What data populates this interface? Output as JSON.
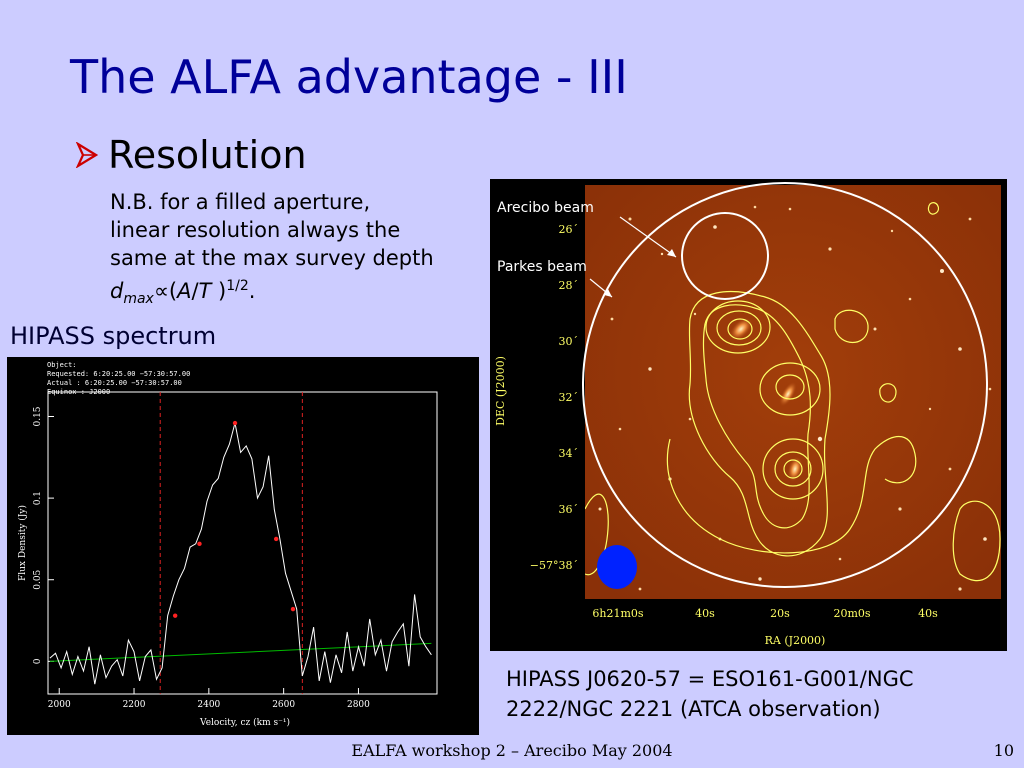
{
  "slide": {
    "title": "The ALFA advantage - III",
    "bullet": "Resolution",
    "note": {
      "line1": "N.B. for a filled aperture,",
      "line2": "linear resolution always the",
      "line3": "same at the max survey depth",
      "d": "d",
      "max": "max",
      "propto": "∝",
      "paren_open": "(",
      "A": "A",
      "slash": "/",
      "T": "T",
      "paren_close": " )",
      "exp": "1/2",
      "period": "."
    },
    "hipass_label": "HIPASS spectrum",
    "caption_line1": "HIPASS J0620-57 = ESO161-G001/NGC",
    "caption_line2": "2222/NGC 2221 (ATCA observation)",
    "footer": "EALFA workshop 2 – Arecibo May 2004",
    "page_number": "10",
    "title_color": "#000099",
    "background_color": "#ccccff"
  },
  "radio_image": {
    "annotations": {
      "arecibo": "Arecibo beam",
      "parkes": "Parkes beam"
    },
    "dec_ticks": [
      "26´",
      "28´",
      "30´",
      "32´",
      "34´",
      "36´",
      "−57°38´"
    ],
    "ra_ticks": [
      "6h21m0s",
      "40s",
      "20s",
      "20m0s",
      "40s"
    ],
    "dec_label": "DEC (J2000)",
    "ra_label": "RA (J2000)",
    "beam_color": "#0022ff",
    "contour_color": "#ffff66"
  },
  "chart_data": {
    "type": "line",
    "header": [
      "Object:",
      "Requested:  6:20:25.00    −57:30:57.00",
      "Actual    :  6:20:25.00    −57:30:57.00",
      "Equinox   : J2000"
    ],
    "xlabel": "Velocity, cz (km s⁻¹)",
    "ylabel": "Flux Density (Jy)",
    "xlim": [
      1970,
      3010
    ],
    "ylim": [
      -0.02,
      0.165
    ],
    "x_ticks": [
      "2000",
      "2200",
      "2400",
      "2600",
      "2800"
    ],
    "y_ticks": [
      "0",
      "0.05",
      "0.1",
      "0.15"
    ],
    "x_tick_values": [
      2000,
      2200,
      2400,
      2600,
      2800
    ],
    "y_tick_values": [
      0,
      0.05,
      0.1,
      0.15
    ],
    "series": [
      {
        "x": [
          1975,
          1990,
          2005,
          2020,
          2035,
          2050,
          2065,
          2080,
          2095,
          2110,
          2125,
          2140,
          2155,
          2170,
          2185,
          2200,
          2215,
          2230,
          2245,
          2260,
          2275,
          2290,
          2305,
          2320,
          2335,
          2350,
          2365,
          2380,
          2395,
          2410,
          2425,
          2440,
          2455,
          2470,
          2485,
          2500,
          2515,
          2530,
          2545,
          2560,
          2575,
          2590,
          2605,
          2620,
          2635,
          2650,
          2665,
          2680,
          2695,
          2710,
          2725,
          2740,
          2755,
          2770,
          2785,
          2800,
          2815,
          2830,
          2845,
          2860,
          2875,
          2890,
          2905,
          2920,
          2935,
          2950,
          2965,
          2980,
          2995
        ],
        "y": [
          0.002,
          0.005,
          -0.004,
          0.006,
          -0.008,
          0.003,
          -0.006,
          0.009,
          -0.014,
          0.004,
          -0.01,
          -0.003,
          0.001,
          -0.009,
          0.013,
          0.006,
          -0.012,
          0.003,
          0.007,
          -0.011,
          -0.004,
          0.028,
          0.04,
          0.05,
          0.057,
          0.07,
          0.072,
          0.081,
          0.098,
          0.108,
          0.112,
          0.125,
          0.133,
          0.146,
          0.128,
          0.132,
          0.124,
          0.1,
          0.107,
          0.126,
          0.093,
          0.075,
          0.054,
          0.043,
          0.032,
          -0.009,
          0.003,
          0.021,
          -0.012,
          0.006,
          -0.013,
          0.004,
          -0.007,
          0.018,
          -0.006,
          0.009,
          -0.003,
          0.026,
          0.004,
          0.013,
          -0.006,
          0.012,
          0.018,
          0.023,
          -0.003,
          0.041,
          0.015,
          0.009,
          0.004
        ]
      }
    ],
    "baseline": {
      "x": [
        1975,
        2995
      ],
      "y": [
        0.0,
        0.011
      ],
      "color": "#00bb00"
    },
    "velocity_window": [
      2270,
      2650
    ],
    "markers": [
      {
        "x": 2310,
        "y": 0.028
      },
      {
        "x": 2375,
        "y": 0.072
      },
      {
        "x": 2470,
        "y": 0.146
      },
      {
        "x": 2580,
        "y": 0.075
      },
      {
        "x": 2625,
        "y": 0.032
      }
    ],
    "line_color": "#ffffff",
    "marker_color": "#ff2222",
    "window_color": "#dd2222"
  }
}
